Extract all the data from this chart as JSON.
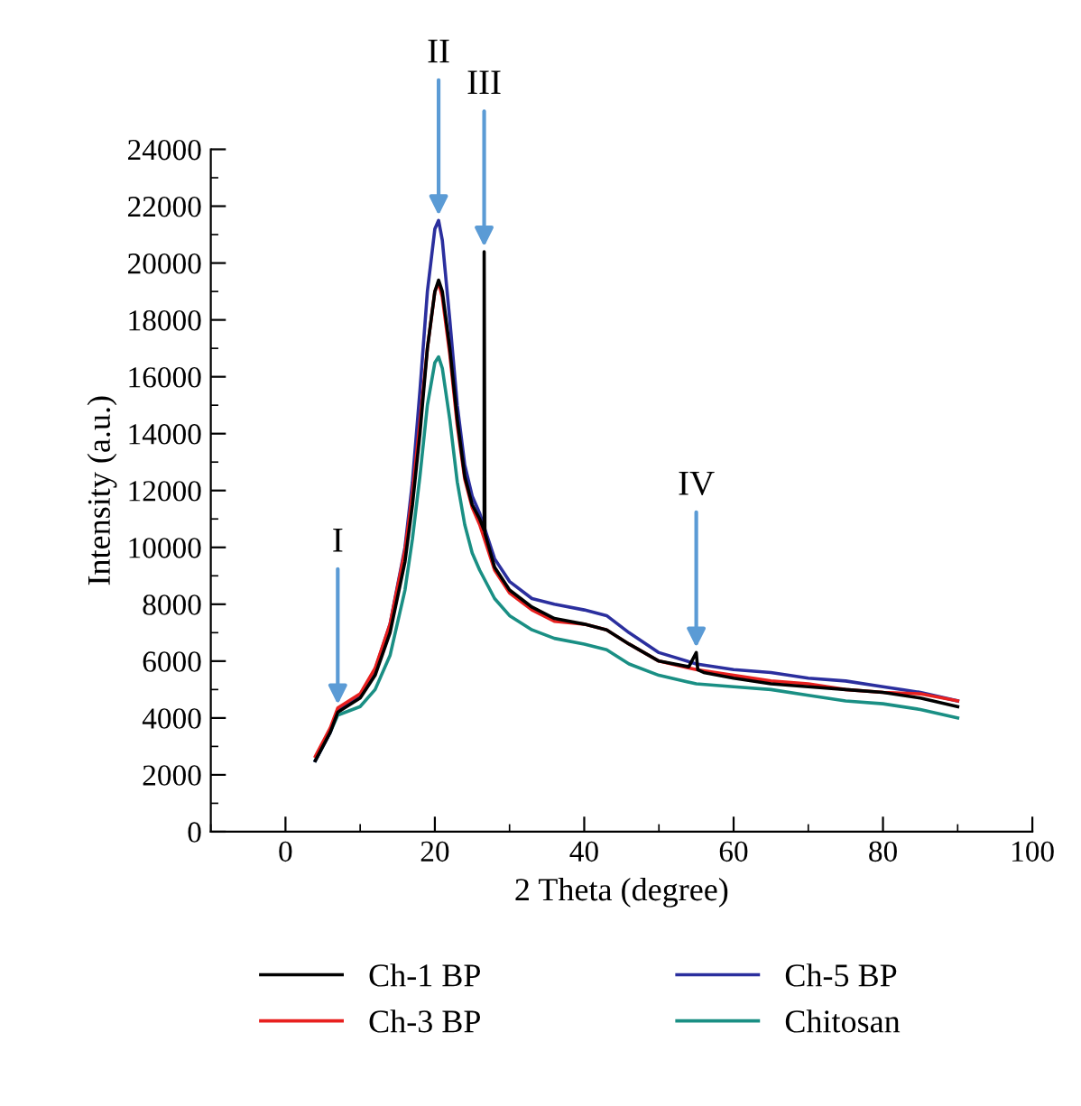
{
  "chart_data": {
    "type": "line",
    "xlabel": "2 Theta (degree)",
    "ylabel": "Intensity (a.u.)",
    "xlim": [
      -10,
      100
    ],
    "xticks": [
      0,
      20,
      40,
      60,
      80,
      100
    ],
    "ylim": [
      0,
      24000
    ],
    "yticks": [
      0,
      2000,
      4000,
      6000,
      8000,
      10000,
      12000,
      14000,
      16000,
      18000,
      20000,
      22000,
      24000
    ],
    "grid": false,
    "legend": "bottom",
    "line_style": "solid",
    "marker": "none",
    "series": [
      {
        "name": "Ch-1 BP",
        "color": "#000000",
        "x": [
          4,
          6,
          7,
          10,
          12,
          14,
          16,
          17,
          18,
          19,
          20,
          20.5,
          21,
          22,
          23,
          24,
          25,
          26,
          26.6,
          26.6,
          26.7,
          28,
          30,
          33,
          36,
          40,
          43,
          46,
          50,
          54,
          55,
          55.2,
          56,
          60,
          65,
          70,
          75,
          80,
          85,
          90
        ],
        "values": [
          2500,
          3500,
          4200,
          4700,
          5500,
          7000,
          9500,
          11500,
          14000,
          17000,
          19000,
          19400,
          19000,
          17000,
          14500,
          12500,
          11500,
          11000,
          10600,
          20400,
          10500,
          9300,
          8500,
          7900,
          7500,
          7300,
          7100,
          6600,
          6000,
          5800,
          6300,
          5700,
          5600,
          5400,
          5200,
          5100,
          5000,
          4900,
          4700,
          4400
        ]
      },
      {
        "name": "Ch-3 BP",
        "color": "#e8201f",
        "x": [
          4,
          6,
          7,
          10,
          12,
          14,
          16,
          17,
          18,
          19,
          20,
          20.5,
          21,
          22,
          23,
          24,
          25,
          26,
          28,
          30,
          33,
          36,
          40,
          43,
          46,
          50,
          55,
          60,
          65,
          70,
          75,
          80,
          85,
          90
        ],
        "values": [
          2650,
          3650,
          4350,
          4850,
          5750,
          7300,
          9900,
          11900,
          14400,
          17000,
          19000,
          19300,
          18800,
          16800,
          14300,
          12400,
          11400,
          10800,
          9200,
          8400,
          7800,
          7400,
          7300,
          7100,
          6600,
          6000,
          5700,
          5500,
          5300,
          5200,
          5000,
          4900,
          4850,
          4600
        ]
      },
      {
        "name": "Ch-5 BP",
        "color": "#2b2f9e",
        "x": [
          4,
          6,
          7,
          10,
          12,
          14,
          16,
          17,
          18,
          19,
          20,
          20.5,
          21,
          22,
          23,
          24,
          25,
          26,
          28,
          30,
          33,
          36,
          40,
          43,
          46,
          50,
          55,
          60,
          65,
          70,
          75,
          80,
          85,
          90
        ],
        "values": [
          2500,
          3500,
          4300,
          4800,
          5700,
          7300,
          10000,
          12300,
          15500,
          19000,
          21200,
          21500,
          20800,
          18000,
          15000,
          12900,
          11800,
          11200,
          9600,
          8800,
          8200,
          8000,
          7800,
          7600,
          7000,
          6300,
          5900,
          5700,
          5600,
          5400,
          5300,
          5100,
          4900,
          4600
        ]
      },
      {
        "name": "Chitosan",
        "color": "#1a8f84",
        "x": [
          4,
          6,
          7,
          10,
          12,
          14,
          16,
          17,
          18,
          19,
          20,
          20.5,
          21,
          22,
          23,
          24,
          25,
          26,
          28,
          30,
          33,
          36,
          40,
          43,
          46,
          50,
          55,
          60,
          65,
          70,
          75,
          80,
          85,
          90
        ],
        "values": [
          2500,
          3500,
          4100,
          4400,
          5000,
          6200,
          8500,
          10300,
          12500,
          15000,
          16500,
          16700,
          16300,
          14500,
          12300,
          10800,
          9800,
          9200,
          8200,
          7600,
          7100,
          6800,
          6600,
          6400,
          5900,
          5500,
          5200,
          5100,
          5000,
          4800,
          4600,
          4500,
          4300,
          4000
        ]
      }
    ],
    "annotations": [
      {
        "text": "I",
        "x": 7,
        "y": 4300
      },
      {
        "text": "II",
        "x": 20.5,
        "y": 21500
      },
      {
        "text": "III",
        "x": 26.6,
        "y": 20400
      },
      {
        "text": "IV",
        "x": 55,
        "y": 6300
      }
    ]
  }
}
